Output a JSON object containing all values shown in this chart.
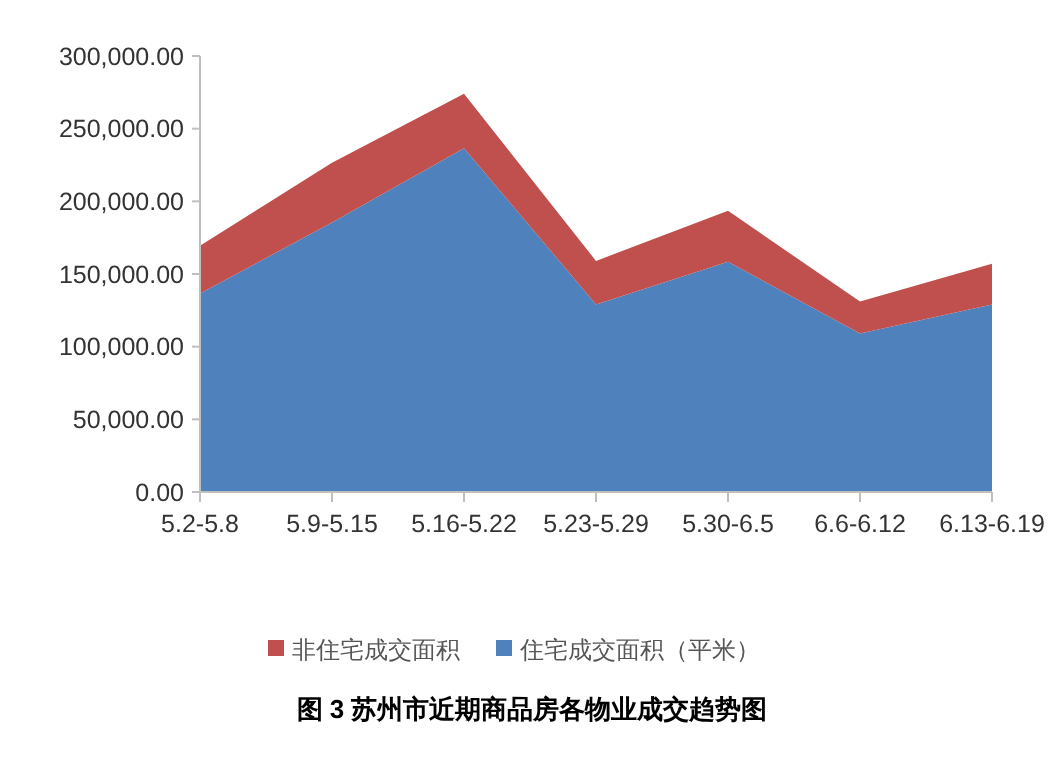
{
  "chart_data": {
    "type": "area",
    "title": "图 3 苏州市近期商品房各物业成交趋势图",
    "stacked": true,
    "legend": "bottom",
    "grid": false,
    "categories": [
      "5.2-5.8",
      "5.9-5.15",
      "5.16-5.22",
      "5.23-5.29",
      "5.30-6.5",
      "6.6-6.12",
      "6.13-6.19"
    ],
    "ylim": [
      0,
      300000
    ],
    "yticks": [
      {
        "value": 0,
        "label": "0.00"
      },
      {
        "value": 50000,
        "label": "50,000.00"
      },
      {
        "value": 100000,
        "label": "100,000.00"
      },
      {
        "value": 150000,
        "label": "150,000.00"
      },
      {
        "value": 200000,
        "label": "200,000.00"
      },
      {
        "value": 250000,
        "label": "250,000.00"
      },
      {
        "value": 300000,
        "label": "300,000.00"
      }
    ],
    "series": [
      {
        "name": "住宅成交面积（平米）",
        "color": "#4f81bd",
        "values": [
          136500,
          185500,
          236500,
          129000,
          158500,
          109000,
          129000
        ]
      },
      {
        "name": "非住宅成交面积",
        "color": "#c0504d",
        "values": [
          33000,
          41000,
          37500,
          30000,
          35000,
          22000,
          28000
        ]
      }
    ]
  }
}
